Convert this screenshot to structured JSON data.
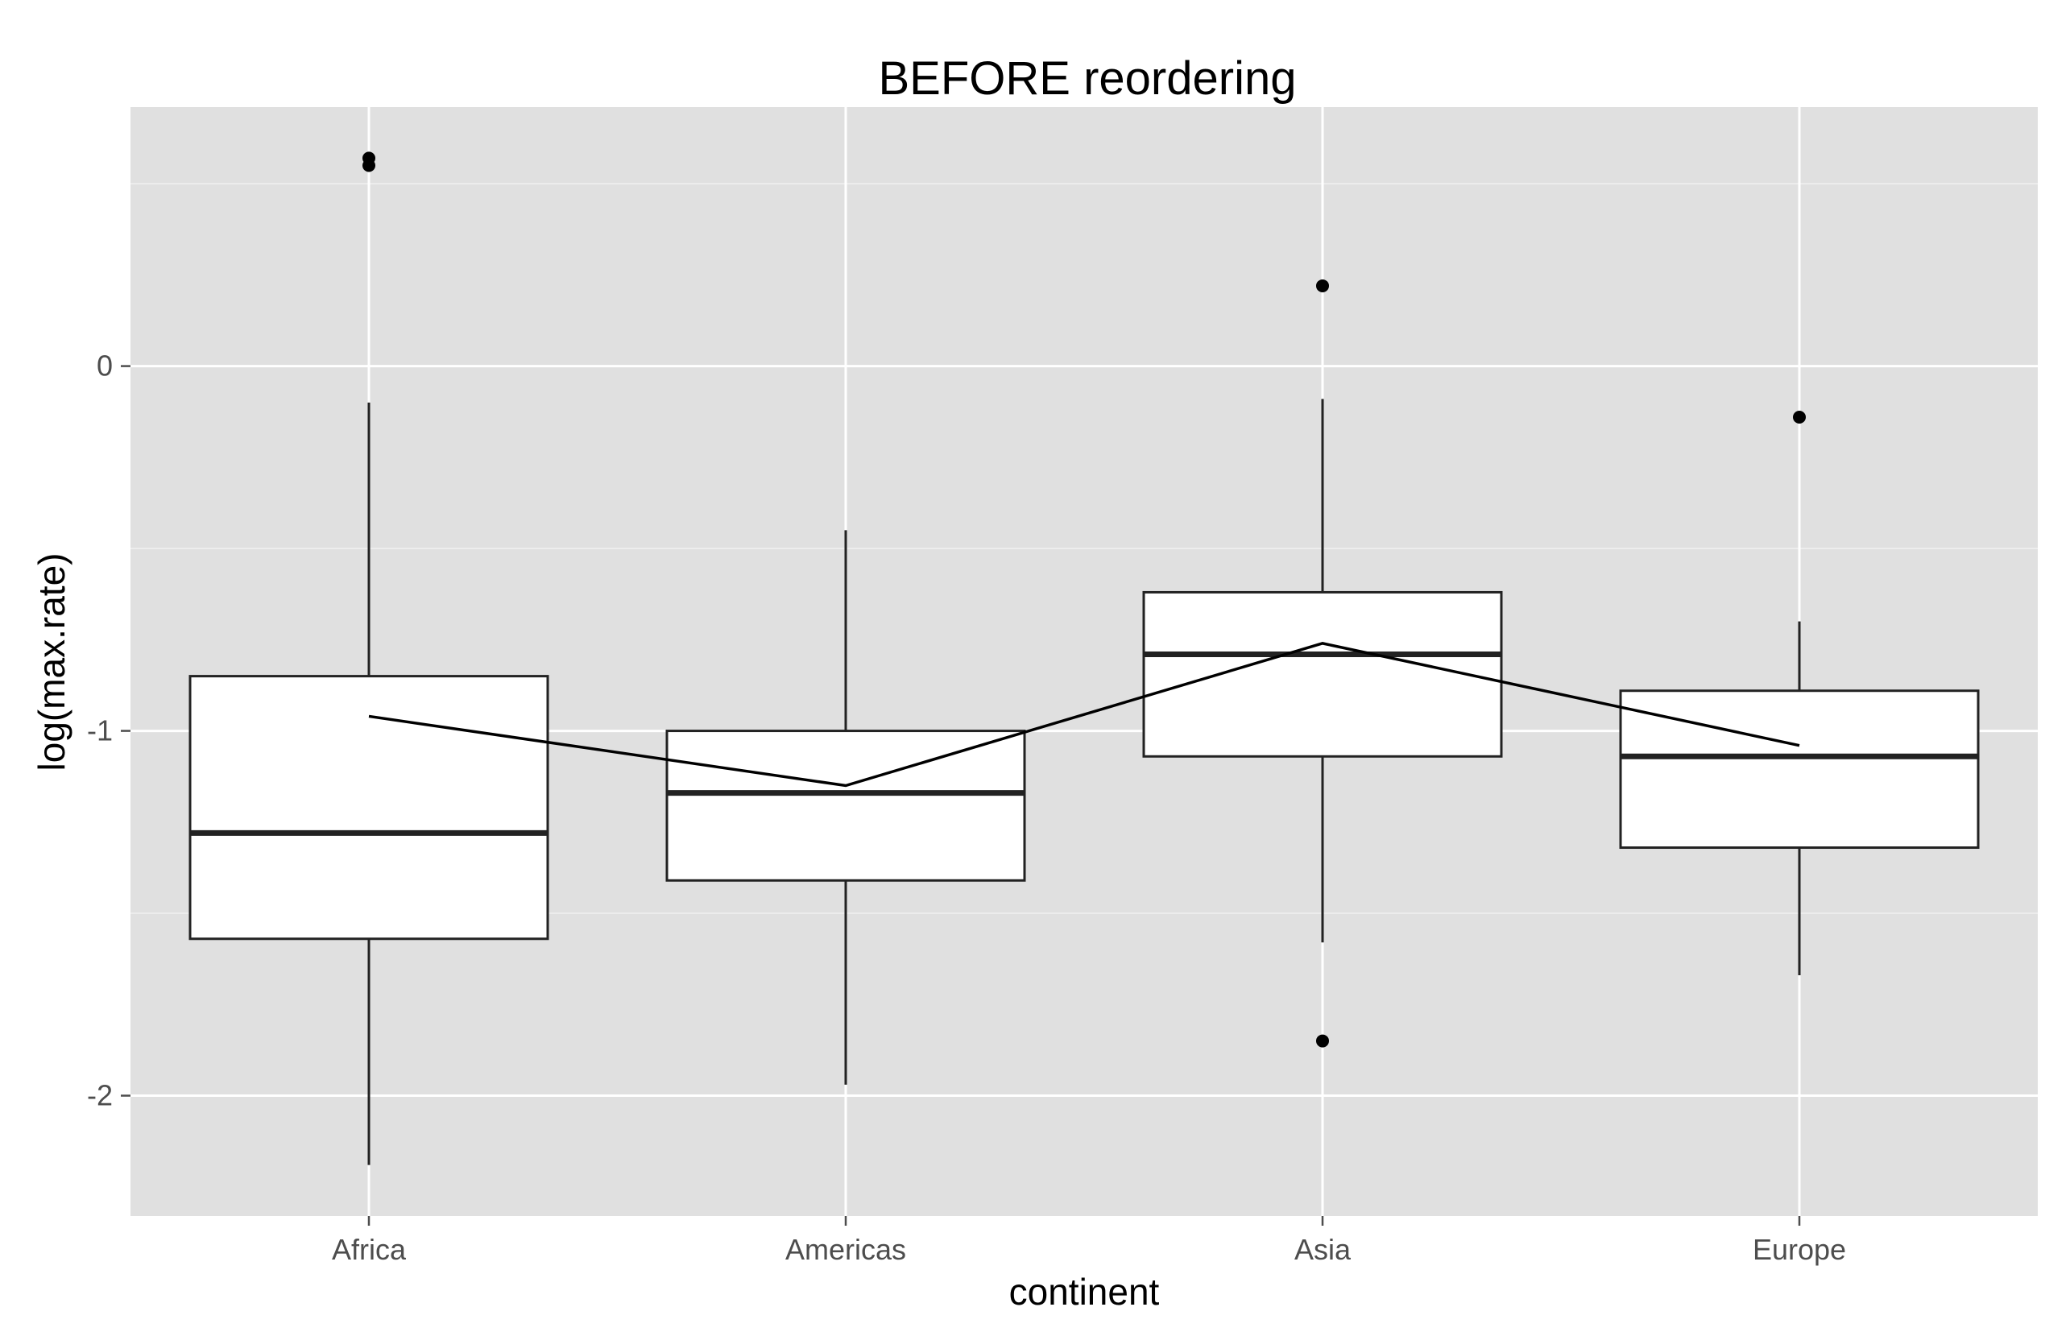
{
  "chart_data": {
    "type": "boxplot",
    "title": "BEFORE reordering",
    "xlabel": "continent",
    "ylabel": "log(max.rate)",
    "categories": [
      "Africa",
      "Americas",
      "Asia",
      "Europe"
    ],
    "ylim": [
      -2.33,
      0.71
    ],
    "yticks": [
      0,
      -1,
      -2
    ],
    "ytick_labels": [
      "0",
      "-1",
      "-2"
    ],
    "grid": true,
    "boxes": [
      {
        "category": "Africa",
        "whisker_low": -2.19,
        "q1": -1.57,
        "median": -1.28,
        "q3": -0.85,
        "whisker_high": -0.1,
        "outliers": [
          0.55,
          0.57
        ]
      },
      {
        "category": "Americas",
        "whisker_low": -1.97,
        "q1": -1.41,
        "median": -1.17,
        "q3": -1.0,
        "whisker_high": -0.45,
        "outliers": []
      },
      {
        "category": "Asia",
        "whisker_low": -1.58,
        "q1": -1.07,
        "median": -0.79,
        "q3": -0.62,
        "whisker_high": -0.09,
        "outliers": [
          0.22,
          -1.85
        ]
      },
      {
        "category": "Europe",
        "whisker_low": -1.67,
        "q1": -1.32,
        "median": -1.07,
        "q3": -0.89,
        "whisker_high": -0.7,
        "outliers": [
          -0.14
        ]
      }
    ],
    "mean_line": [
      -0.96,
      -1.15,
      -0.76,
      -1.04
    ],
    "colors": {
      "panel": "#e0e0e0",
      "grid": "#ffffff",
      "box_fill": "#ffffff",
      "box_stroke": "#222222",
      "mean_line": "#000000"
    }
  }
}
